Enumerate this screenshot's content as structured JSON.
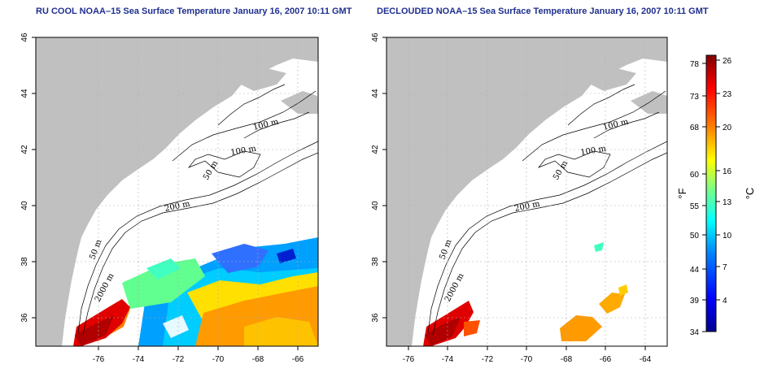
{
  "panels": [
    {
      "title": "RU COOL NOAA–15 Sea Surface Temperature January 16, 2007 10:11 GMT",
      "isobaths": [
        "100 m",
        "100 m",
        "50 m",
        "200 m",
        "50 m",
        "2000 m"
      ]
    },
    {
      "title": "DECLOUDED NOAA–15 Sea Surface Temperature January 16, 2007 10:11 GMT",
      "isobaths": [
        "100 m",
        "100 m",
        "50 m",
        "200 m",
        "50 m",
        "2000 m"
      ]
    }
  ],
  "axes": {
    "x_ticks": [
      "-76",
      "-74",
      "-72",
      "-70",
      "-68",
      "-66",
      "-64"
    ],
    "y_ticks": [
      "36",
      "38",
      "40",
      "42",
      "44",
      "46"
    ]
  },
  "colorbar": {
    "unit_left": "°F",
    "unit_right": "°C",
    "f_ticks": [
      "78",
      "73",
      "68",
      "60",
      "55",
      "50",
      "44",
      "39",
      "34"
    ],
    "c_ticks": [
      "26",
      "23",
      "20",
      "16",
      "13",
      "10",
      "7",
      "4"
    ]
  },
  "colors": {
    "land": "#c0c0c0",
    "ocean": "#ffffff",
    "title": "#1f2f8f",
    "grid": "#b0b0b0"
  }
}
